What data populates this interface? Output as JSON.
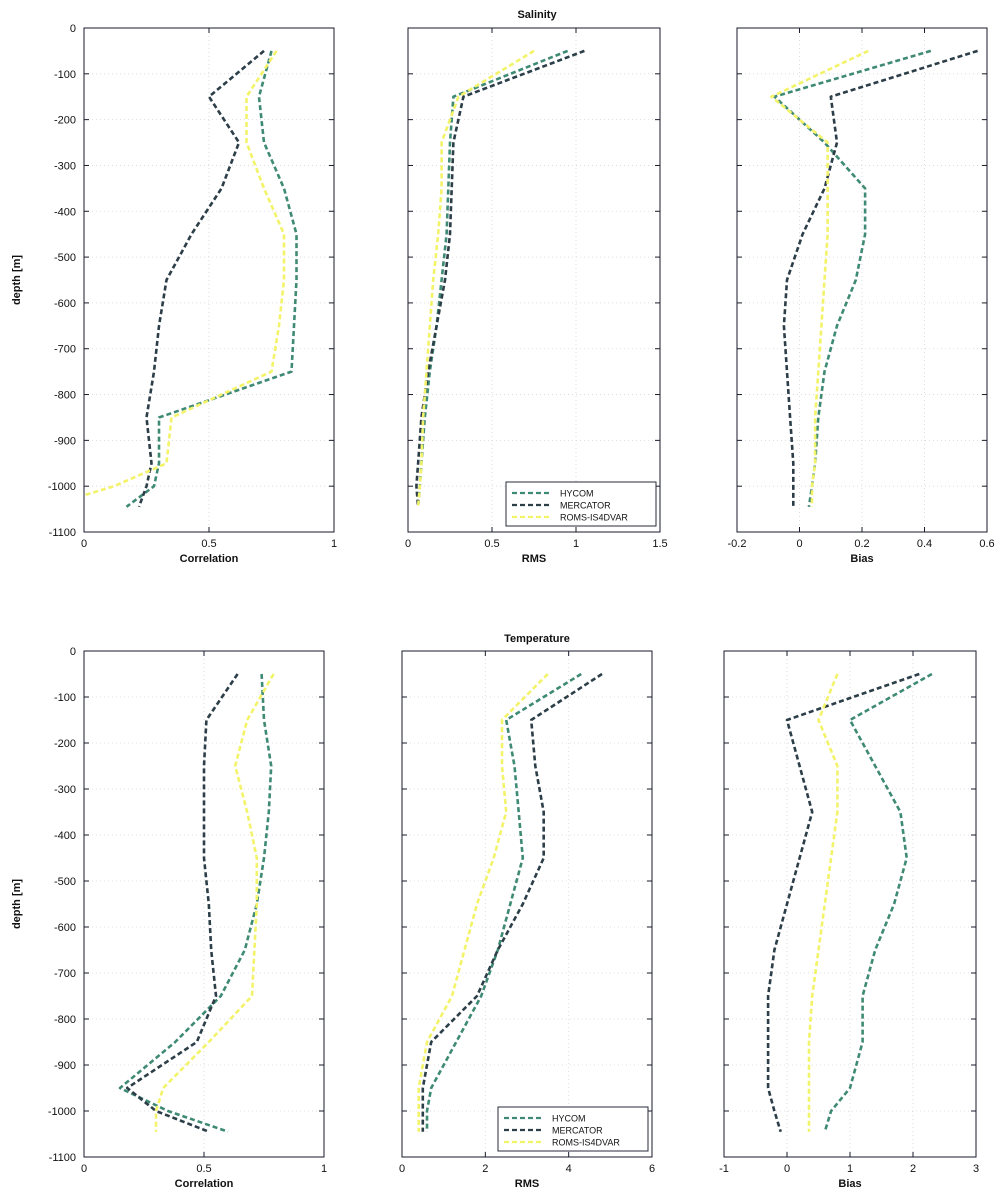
{
  "figure": {
    "top_title": "Salinity",
    "bottom_title": "Temperature"
  },
  "legend_labels": [
    "HYCOM",
    "MERCATOR",
    "ROMS-IS4DVAR"
  ],
  "colors": {
    "HYCOM": "#3f8a74",
    "MERCATOR": "#2c3e48",
    "ROMS-IS4DVAR": "#f3f36a"
  },
  "chart_data": [
    {
      "type": "line",
      "title": "",
      "xlabel": "Correlation",
      "ylabel": "depth [m]",
      "xlim": [
        0,
        1
      ],
      "ylim": [
        -1100,
        0
      ],
      "xticks": [
        "0",
        "0.5",
        "1"
      ],
      "yticks": [
        "0",
        "-100",
        "-200",
        "-300",
        "-400",
        "-500",
        "-600",
        "-700",
        "-800",
        "-900",
        "-1000",
        "-1100"
      ],
      "grid": true,
      "series": [
        {
          "name": "HYCOM",
          "x": [
            0.75,
            0.7,
            0.72,
            0.8,
            0.85,
            0.85,
            0.84,
            0.83,
            0.3,
            0.3,
            0.28,
            0.17
          ],
          "y": [
            -50,
            -150,
            -250,
            -350,
            -450,
            -550,
            -650,
            -750,
            -850,
            -950,
            -1000,
            -1045
          ]
        },
        {
          "name": "MERCATOR",
          "x": [
            0.72,
            0.5,
            0.62,
            0.55,
            0.43,
            0.33,
            0.3,
            0.28,
            0.25,
            0.27,
            0.25,
            0.22
          ],
          "y": [
            -50,
            -150,
            -250,
            -350,
            -450,
            -550,
            -650,
            -750,
            -850,
            -950,
            -1000,
            -1045
          ]
        },
        {
          "name": "ROMS-IS4DVAR",
          "x": [
            0.77,
            0.65,
            0.65,
            0.72,
            0.8,
            0.8,
            0.78,
            0.75,
            0.35,
            0.33,
            0.12,
            0.0
          ],
          "y": [
            -50,
            -150,
            -250,
            -350,
            -450,
            -550,
            -650,
            -750,
            -850,
            -950,
            -1000,
            -1020
          ]
        }
      ]
    },
    {
      "type": "line",
      "title": "Salinity",
      "xlabel": "RMS",
      "ylabel": "",
      "xlim": [
        0,
        1.5
      ],
      "ylim": [
        -1100,
        0
      ],
      "xticks": [
        "0",
        "0.5",
        "1",
        "1.5"
      ],
      "yticks": [],
      "grid": true,
      "legend": "bottom-right",
      "series": [
        {
          "name": "HYCOM",
          "x": [
            0.95,
            0.27,
            0.25,
            0.24,
            0.23,
            0.2,
            0.17,
            0.13,
            0.1,
            0.08,
            0.07,
            0.06
          ],
          "y": [
            -50,
            -150,
            -250,
            -350,
            -450,
            -550,
            -650,
            -750,
            -850,
            -950,
            -1000,
            -1045
          ]
        },
        {
          "name": "MERCATOR",
          "x": [
            1.05,
            0.33,
            0.27,
            0.26,
            0.25,
            0.22,
            0.17,
            0.12,
            0.08,
            0.06,
            0.05,
            0.06
          ],
          "y": [
            -50,
            -150,
            -250,
            -350,
            -450,
            -550,
            -650,
            -750,
            -850,
            -950,
            -1000,
            -1045
          ]
        },
        {
          "name": "ROMS-IS4DVAR",
          "x": [
            0.75,
            0.3,
            0.2,
            0.2,
            0.18,
            0.15,
            0.13,
            0.11,
            0.09,
            0.08,
            0.07,
            0.06
          ],
          "y": [
            -50,
            -150,
            -250,
            -350,
            -450,
            -550,
            -650,
            -750,
            -850,
            -950,
            -1000,
            -1045
          ]
        }
      ]
    },
    {
      "type": "line",
      "title": "",
      "xlabel": "Bias",
      "ylabel": "",
      "xlim": [
        -0.2,
        0.6
      ],
      "ylim": [
        -1100,
        0
      ],
      "xticks": [
        "-0.2",
        "0",
        "0.2",
        "0.4",
        "0.6"
      ],
      "yticks": [],
      "grid": true,
      "series": [
        {
          "name": "HYCOM",
          "x": [
            0.42,
            -0.08,
            0.08,
            0.21,
            0.21,
            0.18,
            0.12,
            0.08,
            0.06,
            0.05,
            0.04,
            0.03
          ],
          "y": [
            -50,
            -150,
            -250,
            -350,
            -450,
            -550,
            -650,
            -750,
            -850,
            -950,
            -1000,
            -1045
          ]
        },
        {
          "name": "MERCATOR",
          "x": [
            0.57,
            0.1,
            0.12,
            0.08,
            0.01,
            -0.04,
            -0.05,
            -0.04,
            -0.03,
            -0.02,
            -0.02,
            -0.02
          ],
          "y": [
            -50,
            -150,
            -250,
            -350,
            -450,
            -550,
            -650,
            -750,
            -850,
            -950,
            -1000,
            -1045
          ]
        },
        {
          "name": "ROMS-IS4DVAR",
          "x": [
            0.22,
            -0.09,
            0.09,
            0.09,
            0.09,
            0.08,
            0.07,
            0.06,
            0.05,
            0.05,
            0.04,
            0.04
          ],
          "y": [
            -50,
            -150,
            -250,
            -350,
            -450,
            -550,
            -650,
            -750,
            -850,
            -950,
            -1000,
            -1045
          ]
        }
      ]
    },
    {
      "type": "line",
      "title": "",
      "xlabel": "Correlation",
      "ylabel": "depth [m]",
      "xlim": [
        0,
        1
      ],
      "ylim": [
        -1100,
        0
      ],
      "xticks": [
        "0",
        "0.5",
        "1"
      ],
      "yticks": [
        "0",
        "-100",
        "-200",
        "-300",
        "-400",
        "-500",
        "-600",
        "-700",
        "-800",
        "-900",
        "-1000",
        "-1100"
      ],
      "grid": true,
      "series": [
        {
          "name": "HYCOM",
          "x": [
            0.74,
            0.75,
            0.78,
            0.77,
            0.75,
            0.72,
            0.67,
            0.57,
            0.38,
            0.15,
            0.35,
            0.6
          ],
          "y": [
            -50,
            -150,
            -250,
            -350,
            -450,
            -550,
            -650,
            -750,
            -850,
            -950,
            -1000,
            -1045
          ]
        },
        {
          "name": "MERCATOR",
          "x": [
            0.64,
            0.51,
            0.5,
            0.5,
            0.5,
            0.52,
            0.53,
            0.55,
            0.47,
            0.18,
            0.3,
            0.52
          ],
          "y": [
            -50,
            -150,
            -250,
            -350,
            -450,
            -550,
            -650,
            -750,
            -850,
            -950,
            -1000,
            -1045
          ]
        },
        {
          "name": "ROMS-IS4DVAR",
          "x": [
            0.79,
            0.68,
            0.63,
            0.68,
            0.72,
            0.72,
            0.71,
            0.7,
            0.52,
            0.33,
            0.3,
            0.3
          ],
          "y": [
            -50,
            -150,
            -250,
            -350,
            -450,
            -550,
            -650,
            -750,
            -850,
            -950,
            -1000,
            -1045
          ]
        }
      ]
    },
    {
      "type": "line",
      "title": "Temperature",
      "xlabel": "RMS",
      "ylabel": "",
      "xlim": [
        0,
        6
      ],
      "ylim": [
        -1100,
        0
      ],
      "xticks": [
        "0",
        "2",
        "4",
        "6"
      ],
      "yticks": [],
      "grid": true,
      "legend": "bottom-right",
      "series": [
        {
          "name": "HYCOM",
          "x": [
            4.3,
            2.5,
            2.7,
            2.8,
            2.9,
            2.6,
            2.3,
            1.9,
            1.3,
            0.7,
            0.6,
            0.6
          ],
          "y": [
            -50,
            -150,
            -250,
            -350,
            -450,
            -550,
            -650,
            -750,
            -850,
            -950,
            -1000,
            -1045
          ]
        },
        {
          "name": "MERCATOR",
          "x": [
            4.8,
            3.1,
            3.2,
            3.4,
            3.4,
            2.9,
            2.3,
            1.8,
            0.7,
            0.5,
            0.5,
            0.5
          ],
          "y": [
            -50,
            -150,
            -250,
            -350,
            -450,
            -550,
            -650,
            -750,
            -850,
            -950,
            -1000,
            -1045
          ]
        },
        {
          "name": "ROMS-IS4DVAR",
          "x": [
            3.5,
            2.4,
            2.4,
            2.5,
            2.2,
            1.8,
            1.5,
            1.2,
            0.6,
            0.4,
            0.4,
            0.4
          ],
          "y": [
            -50,
            -150,
            -250,
            -350,
            -450,
            -550,
            -650,
            -750,
            -850,
            -950,
            -1000,
            -1045
          ]
        }
      ]
    },
    {
      "type": "line",
      "title": "",
      "xlabel": "Bias",
      "ylabel": "",
      "xlim": [
        -1,
        3
      ],
      "ylim": [
        -1100,
        0
      ],
      "xticks": [
        "-1",
        "0",
        "1",
        "2",
        "3"
      ],
      "yticks": [],
      "grid": true,
      "series": [
        {
          "name": "HYCOM",
          "x": [
            2.3,
            1.0,
            1.4,
            1.8,
            1.9,
            1.7,
            1.4,
            1.2,
            1.2,
            1.0,
            0.7,
            0.6
          ],
          "y": [
            -50,
            -150,
            -250,
            -350,
            -450,
            -550,
            -650,
            -750,
            -850,
            -950,
            -1000,
            -1045
          ]
        },
        {
          "name": "MERCATOR",
          "x": [
            2.1,
            0.0,
            0.2,
            0.4,
            0.2,
            0.0,
            -0.2,
            -0.3,
            -0.3,
            -0.3,
            -0.2,
            -0.1
          ],
          "y": [
            -50,
            -150,
            -250,
            -350,
            -450,
            -550,
            -650,
            -750,
            -850,
            -950,
            -1000,
            -1045
          ]
        },
        {
          "name": "ROMS-IS4DVAR",
          "x": [
            0.8,
            0.5,
            0.8,
            0.8,
            0.7,
            0.6,
            0.5,
            0.4,
            0.35,
            0.35,
            0.35,
            0.35
          ],
          "y": [
            -50,
            -150,
            -250,
            -350,
            -450,
            -550,
            -650,
            -750,
            -850,
            -950,
            -1000,
            -1045
          ]
        }
      ]
    }
  ]
}
